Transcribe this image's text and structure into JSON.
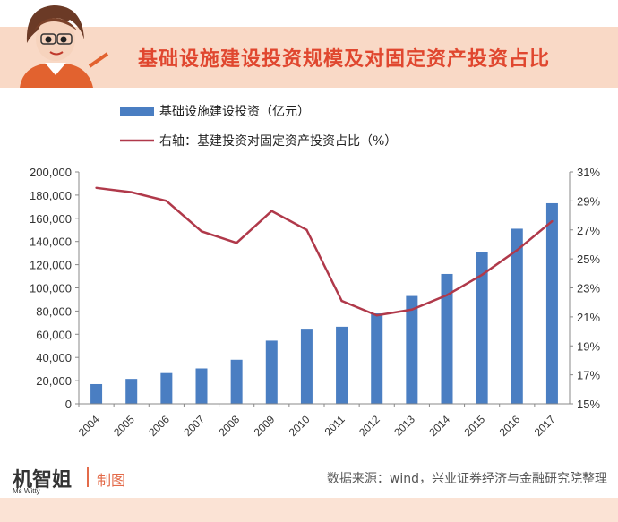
{
  "banner": {
    "title": "基础设施建设投资规模及对固定资产投资占比"
  },
  "footer": {
    "brand": "机智姐",
    "brand_sub": "Ms Witty",
    "made": "制图",
    "source": "数据来源：wind，兴业证券经济与金融研究院整理"
  },
  "colors": {
    "bar": "#4a7ec2",
    "line": "#b0394a",
    "banner_bg": "#f9d9c6",
    "title": "#e0472f"
  },
  "chart_data": {
    "type": "bar",
    "categories": [
      "2004",
      "2005",
      "2006",
      "2007",
      "2008",
      "2009",
      "2010",
      "2011",
      "2012",
      "2013",
      "2014",
      "2015",
      "2016",
      "2017"
    ],
    "series": [
      {
        "name": "基础设施建设投资（亿元）",
        "type": "bar",
        "axis": "left",
        "values": [
          17000,
          21500,
          26500,
          30500,
          38000,
          54500,
          64000,
          66500,
          78000,
          93000,
          112000,
          131000,
          151000,
          173000
        ]
      },
      {
        "name": "右轴：基建投资对固定资产投资占比（%）",
        "type": "line",
        "axis": "right",
        "values": [
          29.9,
          29.6,
          29.0,
          26.9,
          26.1,
          28.3,
          27.0,
          22.1,
          21.1,
          21.5,
          22.5,
          23.9,
          25.6,
          27.6
        ]
      }
    ],
    "left_axis": {
      "ylim": [
        0,
        200000
      ],
      "ticks": [
        "0",
        "20,000",
        "40,000",
        "60,000",
        "80,000",
        "100,000",
        "120,000",
        "140,000",
        "160,000",
        "180,000",
        "200,000"
      ]
    },
    "right_axis": {
      "ylim": [
        15,
        31
      ],
      "ticks": [
        "15%",
        "17%",
        "19%",
        "21%",
        "23%",
        "25%",
        "27%",
        "29%",
        "31%"
      ]
    },
    "legend": "top-left",
    "grid": false
  }
}
